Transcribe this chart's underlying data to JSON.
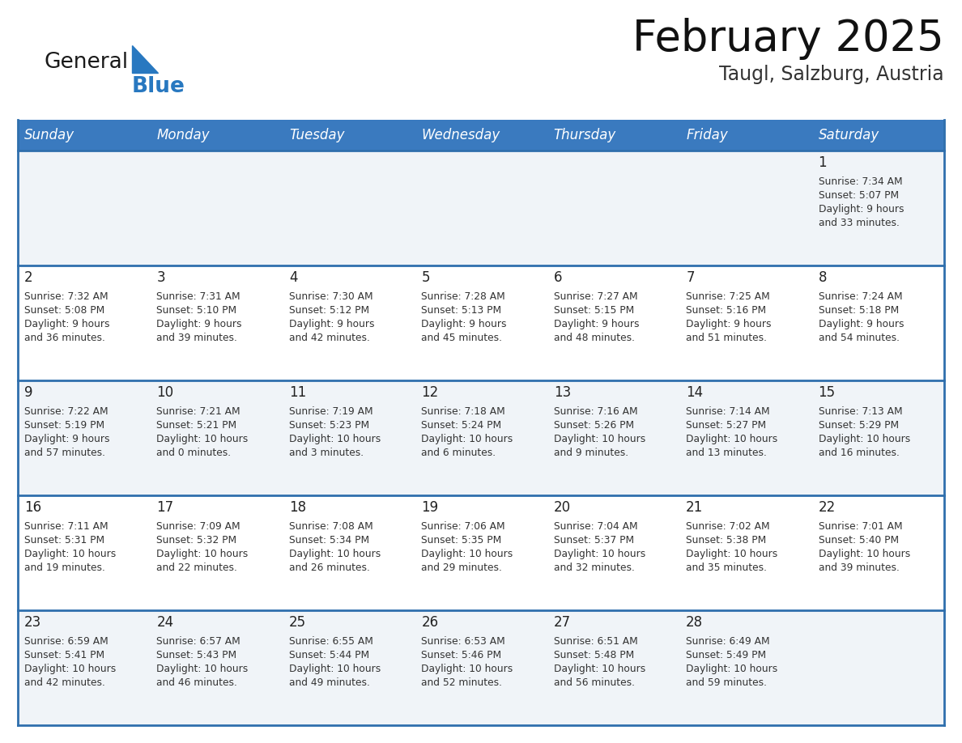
{
  "title": "February 2025",
  "subtitle": "Taugl, Salzburg, Austria",
  "days_of_week": [
    "Sunday",
    "Monday",
    "Tuesday",
    "Wednesday",
    "Thursday",
    "Friday",
    "Saturday"
  ],
  "header_bg": "#3a7abf",
  "header_text": "#ffffff",
  "row_bg_even": "#f0f4f8",
  "row_bg_odd": "#ffffff",
  "separator_color": "#2f6fad",
  "day_number_color": "#222222",
  "text_color": "#333333",
  "logo_general_color": "#1a1a1a",
  "logo_blue_color": "#2878c0",
  "logo_triangle_color": "#2878c0",
  "title_color": "#111111",
  "subtitle_color": "#333333",
  "calendar_data": [
    [
      null,
      null,
      null,
      null,
      null,
      null,
      {
        "day": "1",
        "sunrise": "7:34 AM",
        "sunset": "5:07 PM",
        "daylight1": "9 hours",
        "daylight2": "and 33 minutes."
      }
    ],
    [
      {
        "day": "2",
        "sunrise": "7:32 AM",
        "sunset": "5:08 PM",
        "daylight1": "9 hours",
        "daylight2": "and 36 minutes."
      },
      {
        "day": "3",
        "sunrise": "7:31 AM",
        "sunset": "5:10 PM",
        "daylight1": "9 hours",
        "daylight2": "and 39 minutes."
      },
      {
        "day": "4",
        "sunrise": "7:30 AM",
        "sunset": "5:12 PM",
        "daylight1": "9 hours",
        "daylight2": "and 42 minutes."
      },
      {
        "day": "5",
        "sunrise": "7:28 AM",
        "sunset": "5:13 PM",
        "daylight1": "9 hours",
        "daylight2": "and 45 minutes."
      },
      {
        "day": "6",
        "sunrise": "7:27 AM",
        "sunset": "5:15 PM",
        "daylight1": "9 hours",
        "daylight2": "and 48 minutes."
      },
      {
        "day": "7",
        "sunrise": "7:25 AM",
        "sunset": "5:16 PM",
        "daylight1": "9 hours",
        "daylight2": "and 51 minutes."
      },
      {
        "day": "8",
        "sunrise": "7:24 AM",
        "sunset": "5:18 PM",
        "daylight1": "9 hours",
        "daylight2": "and 54 minutes."
      }
    ],
    [
      {
        "day": "9",
        "sunrise": "7:22 AM",
        "sunset": "5:19 PM",
        "daylight1": "9 hours",
        "daylight2": "and 57 minutes."
      },
      {
        "day": "10",
        "sunrise": "7:21 AM",
        "sunset": "5:21 PM",
        "daylight1": "10 hours",
        "daylight2": "and 0 minutes."
      },
      {
        "day": "11",
        "sunrise": "7:19 AM",
        "sunset": "5:23 PM",
        "daylight1": "10 hours",
        "daylight2": "and 3 minutes."
      },
      {
        "day": "12",
        "sunrise": "7:18 AM",
        "sunset": "5:24 PM",
        "daylight1": "10 hours",
        "daylight2": "and 6 minutes."
      },
      {
        "day": "13",
        "sunrise": "7:16 AM",
        "sunset": "5:26 PM",
        "daylight1": "10 hours",
        "daylight2": "and 9 minutes."
      },
      {
        "day": "14",
        "sunrise": "7:14 AM",
        "sunset": "5:27 PM",
        "daylight1": "10 hours",
        "daylight2": "and 13 minutes."
      },
      {
        "day": "15",
        "sunrise": "7:13 AM",
        "sunset": "5:29 PM",
        "daylight1": "10 hours",
        "daylight2": "and 16 minutes."
      }
    ],
    [
      {
        "day": "16",
        "sunrise": "7:11 AM",
        "sunset": "5:31 PM",
        "daylight1": "10 hours",
        "daylight2": "and 19 minutes."
      },
      {
        "day": "17",
        "sunrise": "7:09 AM",
        "sunset": "5:32 PM",
        "daylight1": "10 hours",
        "daylight2": "and 22 minutes."
      },
      {
        "day": "18",
        "sunrise": "7:08 AM",
        "sunset": "5:34 PM",
        "daylight1": "10 hours",
        "daylight2": "and 26 minutes."
      },
      {
        "day": "19",
        "sunrise": "7:06 AM",
        "sunset": "5:35 PM",
        "daylight1": "10 hours",
        "daylight2": "and 29 minutes."
      },
      {
        "day": "20",
        "sunrise": "7:04 AM",
        "sunset": "5:37 PM",
        "daylight1": "10 hours",
        "daylight2": "and 32 minutes."
      },
      {
        "day": "21",
        "sunrise": "7:02 AM",
        "sunset": "5:38 PM",
        "daylight1": "10 hours",
        "daylight2": "and 35 minutes."
      },
      {
        "day": "22",
        "sunrise": "7:01 AM",
        "sunset": "5:40 PM",
        "daylight1": "10 hours",
        "daylight2": "and 39 minutes."
      }
    ],
    [
      {
        "day": "23",
        "sunrise": "6:59 AM",
        "sunset": "5:41 PM",
        "daylight1": "10 hours",
        "daylight2": "and 42 minutes."
      },
      {
        "day": "24",
        "sunrise": "6:57 AM",
        "sunset": "5:43 PM",
        "daylight1": "10 hours",
        "daylight2": "and 46 minutes."
      },
      {
        "day": "25",
        "sunrise": "6:55 AM",
        "sunset": "5:44 PM",
        "daylight1": "10 hours",
        "daylight2": "and 49 minutes."
      },
      {
        "day": "26",
        "sunrise": "6:53 AM",
        "sunset": "5:46 PM",
        "daylight1": "10 hours",
        "daylight2": "and 52 minutes."
      },
      {
        "day": "27",
        "sunrise": "6:51 AM",
        "sunset": "5:48 PM",
        "daylight1": "10 hours",
        "daylight2": "and 56 minutes."
      },
      {
        "day": "28",
        "sunrise": "6:49 AM",
        "sunset": "5:49 PM",
        "daylight1": "10 hours",
        "daylight2": "and 59 minutes."
      },
      null
    ]
  ]
}
